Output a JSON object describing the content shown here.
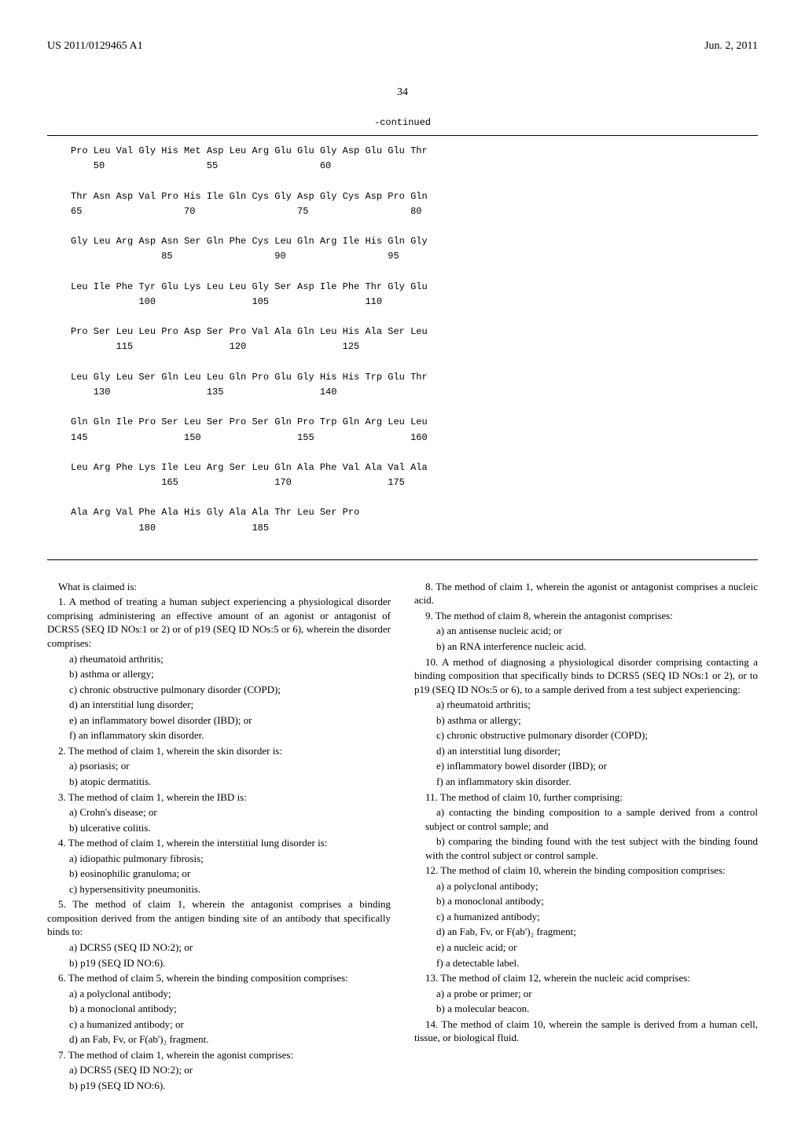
{
  "header": {
    "left": "US 2011/0129465 A1",
    "right": "Jun. 2, 2011"
  },
  "page_number": "34",
  "continued_label": "-continued",
  "sequence": {
    "font_family": "Courier New",
    "font_size_pt": 12,
    "rows": [
      {
        "aa": "Pro Leu Val Gly His Met Asp Leu Arg Glu Glu Gly Asp Glu Glu Thr",
        "nums": [
          "    50                  55                  60"
        ]
      },
      {
        "aa": "Thr Asn Asp Val Pro His Ile Gln Cys Gly Asp Gly Cys Asp Pro Gln",
        "nums": [
          "65                  70                  75                  80"
        ]
      },
      {
        "aa": "Gly Leu Arg Asp Asn Ser Gln Phe Cys Leu Gln Arg Ile His Gln Gly",
        "nums": [
          "                85                  90                  95"
        ]
      },
      {
        "aa": "Leu Ile Phe Tyr Glu Lys Leu Leu Gly Ser Asp Ile Phe Thr Gly Glu",
        "nums": [
          "            100                 105                 110"
        ]
      },
      {
        "aa": "Pro Ser Leu Leu Pro Asp Ser Pro Val Ala Gln Leu His Ala Ser Leu",
        "nums": [
          "        115                 120                 125"
        ]
      },
      {
        "aa": "Leu Gly Leu Ser Gln Leu Leu Gln Pro Glu Gly His His Trp Glu Thr",
        "nums": [
          "    130                 135                 140"
        ]
      },
      {
        "aa": "Gln Gln Ile Pro Ser Leu Ser Pro Ser Gln Pro Trp Gln Arg Leu Leu",
        "nums": [
          "145                 150                 155                 160"
        ]
      },
      {
        "aa": "Leu Arg Phe Lys Ile Leu Arg Ser Leu Gln Ala Phe Val Ala Val Ala",
        "nums": [
          "                165                 170                 175"
        ]
      },
      {
        "aa": "Ala Arg Val Phe Ala His Gly Ala Ala Thr Leu Ser Pro",
        "nums": [
          "            180                 185"
        ]
      }
    ]
  },
  "claims": {
    "intro": "What is claimed is:",
    "c1": {
      "lead": "1. A method of treating a human subject experiencing a physiological disorder comprising administering an effective amount of an agonist or antagonist of DCRS5 (SEQ ID NOs:1 or 2) or of p19 (SEQ ID NOs:5 or 6), wherein the disorder comprises:",
      "a": "a) rheumatoid arthritis;",
      "b": "b) asthma or allergy;",
      "c": "c) chronic obstructive pulmonary disorder (COPD);",
      "d": "d) an interstitial lung disorder;",
      "e": "e) an inflammatory bowel disorder (IBD); or",
      "f": "f) an inflammatory skin disorder."
    },
    "c2": {
      "lead": "2. The method of claim 1, wherein the skin disorder is:",
      "a": "a) psoriasis; or",
      "b": "b) atopic dermatitis."
    },
    "c3": {
      "lead": "3. The method of claim 1, wherein the IBD is:",
      "a": "a) Crohn's disease; or",
      "b": "b) ulcerative colitis."
    },
    "c4": {
      "lead": "4. The method of claim 1, wherein the interstitial lung disorder is:",
      "a": "a) idiopathic pulmonary fibrosis;",
      "b": "b) eosinophilic granuloma; or",
      "c": "c) hypersensitivity pneumonitis."
    },
    "c5": {
      "lead": "5. The method of claim 1, wherein the antagonist comprises a binding composition derived from the antigen binding site of an antibody that specifically binds to:",
      "a": "a) DCRS5 (SEQ ID NO:2); or",
      "b": "b) p19 (SEQ ID NO:6)."
    },
    "c6": {
      "lead": "6. The method of claim 5, wherein the binding composition comprises:",
      "a": "a) a polyclonal antibody;",
      "b": "b) a monoclonal antibody;",
      "c": "c) a humanized antibody; or",
      "d": "d) an Fab, Fv, or F(ab')₂ fragment."
    },
    "c7": {
      "lead": "7. The method of claim 1, wherein the agonist comprises:",
      "a": "a) DCRS5 (SEQ ID NO:2); or",
      "b": "b) p19 (SEQ ID NO:6)."
    },
    "c8": {
      "lead": "8. The method of claim 1, wherein the agonist or antagonist comprises a nucleic acid."
    },
    "c9": {
      "lead": "9. The method of claim 8, wherein the antagonist comprises:",
      "a": "a) an antisense nucleic acid; or",
      "b": "b) an RNA interference nucleic acid."
    },
    "c10": {
      "lead": "10. A method of diagnosing a physiological disorder comprising contacting a binding composition that specifically binds to DCRS5 (SEQ ID NOs:1 or 2), or to p19 (SEQ ID NOs:5 or 6), to a sample derived from a test subject experiencing:",
      "a": "a) rheumatoid arthritis;",
      "b": "b) asthma or allergy;",
      "c": "c) chronic obstructive pulmonary disorder (COPD);",
      "d": "d) an interstitial lung disorder;",
      "e": "e) inflammatory bowel disorder (IBD); or",
      "f": "f) an inflammatory skin disorder."
    },
    "c11": {
      "lead": "11. The method of claim 10, further comprising:",
      "a": "a) contacting the binding composition to a sample derived from a control subject or control sample; and",
      "b": "b) comparing the binding found with the test subject with the binding found with the control subject or control sample."
    },
    "c12": {
      "lead": "12. The method of claim 10, wherein the binding composition comprises:",
      "a": "a) a polyclonal antibody;",
      "b": "b) a monoclonal antibody;",
      "c": "c) a humanized antibody;",
      "d": "d) an Fab, Fv, or F(ab')₂ fragment;",
      "e": "e) a nucleic acid; or",
      "f": "f) a detectable label."
    },
    "c13": {
      "lead": "13. The method of claim 12, wherein the nucleic acid comprises:",
      "a": "a) a probe or primer; or",
      "b": "b) a molecular beacon."
    },
    "c14": {
      "lead": "14. The method of claim 10, wherein the sample is derived from a human cell, tissue, or biological fluid."
    }
  }
}
